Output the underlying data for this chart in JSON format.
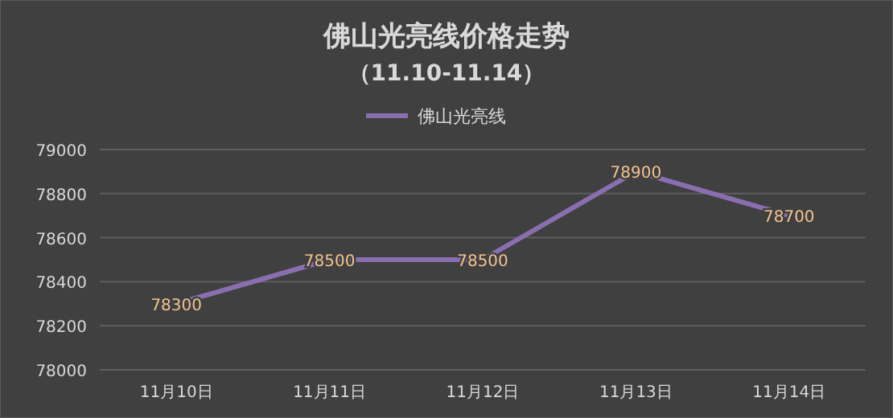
{
  "chart_data": {
    "type": "line",
    "title": "佛山光亮线价格走势",
    "subtitle": "（11.10-11.14）",
    "categories": [
      "11月10日",
      "11月11日",
      "11月12日",
      "11月13日",
      "11月14日"
    ],
    "series": [
      {
        "name": "佛山光亮线",
        "color": "#8a6fb0",
        "values": [
          78300,
          78500,
          78500,
          78900,
          78700
        ]
      }
    ],
    "ylim": [
      78000,
      79000
    ],
    "yticks": [
      78000,
      78200,
      78400,
      78600,
      78800,
      79000
    ],
    "grid": "y",
    "legend": "top",
    "data_labels": true
  }
}
